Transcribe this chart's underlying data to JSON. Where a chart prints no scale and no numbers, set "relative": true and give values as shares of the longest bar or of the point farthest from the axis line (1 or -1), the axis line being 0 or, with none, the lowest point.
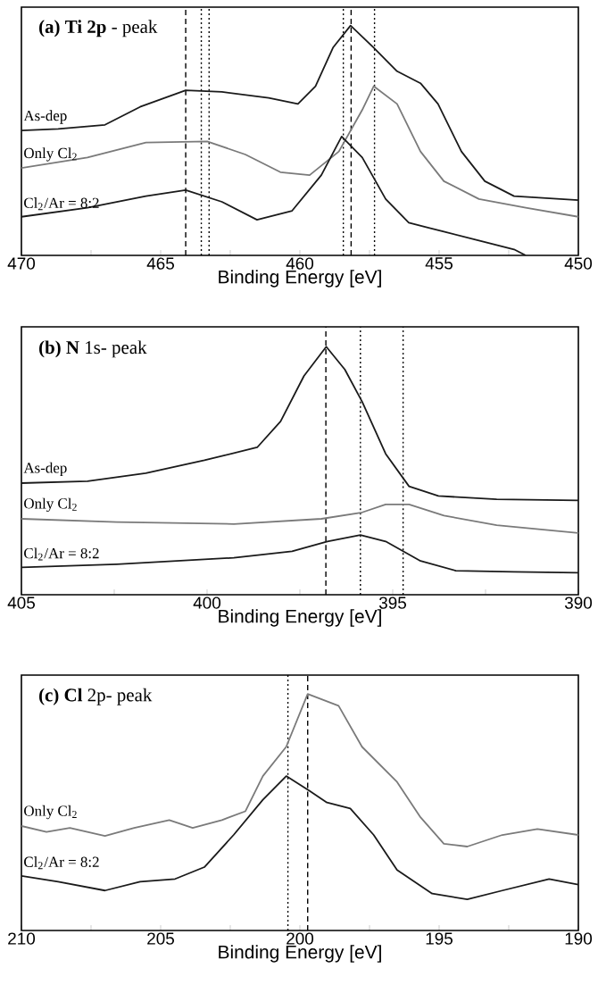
{
  "chart_data": [
    {
      "type": "line",
      "title": "**(a) Ti 2p** - peak",
      "xlabel": "Binding Energy [eV]",
      "relative": true,
      "tick_labels": "x",
      "xlim": [
        470,
        450
      ],
      "xticks": [
        470,
        {
          "value": 467.5,
          "label": null
        },
        465,
        {
          "value": 462.5,
          "label": null
        },
        460,
        {
          "value": 457.5,
          "label": null
        },
        455,
        {
          "value": 452.5,
          "label": null
        },
        450
      ],
      "ref_lines": [
        {
          "axis": "x",
          "value": 464.1,
          "line_style": "dashed",
          "color": "#000000"
        },
        {
          "axis": "x",
          "value": 463.54,
          "line_style": "dotted",
          "color": "#000000"
        },
        {
          "axis": "x",
          "value": 463.26,
          "line_style": "dotted",
          "color": "#000000"
        },
        {
          "axis": "x",
          "value": 458.44,
          "line_style": "dotted",
          "color": "#000000"
        },
        {
          "axis": "x",
          "value": 458.16,
          "line_style": "dashed",
          "color": "#000000"
        },
        {
          "axis": "x",
          "value": 457.32,
          "line_style": "dotted",
          "color": "#000000"
        }
      ],
      "series": [
        {
          "name": "As-dep",
          "color": "#1a1a1a",
          "x": [
            470,
            468.68,
            467.0,
            465.74,
            464.1,
            462.8,
            461.12,
            460.07,
            459.44,
            458.81,
            458.18,
            457.35,
            456.51,
            455.67,
            455.04,
            454.2,
            453.36,
            452.31,
            450
          ],
          "values": [
            0.543,
            0.55,
            0.568,
            0.646,
            0.718,
            0.711,
            0.685,
            0.659,
            0.736,
            0.904,
            1.0,
            0.904,
            0.801,
            0.749,
            0.659,
            0.452,
            0.323,
            0.258,
            0.24
          ]
        },
        {
          "name": "Only Cl$_{2}$",
          "color": "#7a7a7a",
          "x": [
            470,
            467.63,
            465.53,
            463.33,
            461.96,
            460.7,
            459.65,
            458.6,
            457.76,
            457.35,
            456.51,
            455.67,
            454.83,
            453.57,
            451.89,
            450
          ],
          "values": [
            0.38,
            0.426,
            0.491,
            0.496,
            0.439,
            0.362,
            0.349,
            0.452,
            0.633,
            0.736,
            0.659,
            0.452,
            0.323,
            0.245,
            0.207,
            0.168
          ]
        },
        {
          "name": "Cl$_{2}$/Ar = 8:2",
          "color": "#1a1a1a",
          "x": [
            470,
            467.63,
            465.53,
            464.1,
            462.8,
            461.54,
            460.28,
            459.23,
            458.5,
            457.76,
            456.92,
            456.09,
            454.83,
            453.57,
            452.31,
            451.89
          ],
          "values": [
            0.168,
            0.207,
            0.258,
            0.284,
            0.233,
            0.155,
            0.194,
            0.349,
            0.517,
            0.426,
            0.245,
            0.142,
            0.103,
            0.065,
            0.026,
            0.0
          ]
        }
      ]
    },
    {
      "type": "line",
      "title": "**(b) N** 1s- peak",
      "xlabel": "Binding Energy [eV]",
      "relative": true,
      "tick_labels": "x",
      "xlim": [
        405,
        390
      ],
      "xticks": [
        405,
        {
          "value": 402.5,
          "label": null
        },
        400,
        {
          "value": 397.5,
          "label": null
        },
        395,
        {
          "value": 392.5,
          "label": null
        },
        390
      ],
      "ref_lines": [
        {
          "axis": "x",
          "value": 396.8,
          "line_style": "dashed",
          "color": "#000000"
        },
        {
          "axis": "x",
          "value": 395.87,
          "line_style": "dotted",
          "color": "#000000"
        },
        {
          "axis": "x",
          "value": 394.72,
          "line_style": "dotted",
          "color": "#000000"
        }
      ],
      "series": [
        {
          "name": "As-dep",
          "color": "#1a1a1a",
          "x": [
            405,
            403.22,
            401.65,
            400.07,
            398.65,
            398.02,
            397.39,
            396.79,
            396.29,
            395.82,
            395.19,
            394.56,
            393.77,
            392.2,
            390
          ],
          "values": [
            0.45,
            0.458,
            0.49,
            0.542,
            0.594,
            0.699,
            0.882,
            1.0,
            0.908,
            0.777,
            0.568,
            0.437,
            0.398,
            0.385,
            0.38
          ]
        },
        {
          "name": "Only Cl$_{2}$",
          "color": "#7a7a7a",
          "x": [
            405,
            402.43,
            399.28,
            396.92,
            395.82,
            395.19,
            394.56,
            393.62,
            392.2,
            390
          ],
          "values": [
            0.306,
            0.293,
            0.285,
            0.306,
            0.332,
            0.364,
            0.364,
            0.319,
            0.28,
            0.249
          ]
        },
        {
          "name": "Cl$_{2}$/Ar = 8:2",
          "color": "#1a1a1a",
          "x": [
            405,
            402.43,
            399.28,
            397.71,
            396.76,
            395.87,
            395.19,
            394.25,
            393.3,
            391.73,
            390
          ],
          "values": [
            0.11,
            0.123,
            0.149,
            0.175,
            0.215,
            0.241,
            0.215,
            0.136,
            0.097,
            0.092,
            0.089
          ]
        }
      ]
    },
    {
      "type": "line",
      "title": "**(c) Cl** 2p- peak",
      "xlabel": "Binding Energy [eV]",
      "relative": true,
      "tick_labels": "x",
      "xlim": [
        210,
        190
      ],
      "xticks": [
        210,
        {
          "value": 207.5,
          "label": null
        },
        205,
        {
          "value": 202.5,
          "label": null
        },
        200,
        {
          "value": 197.5,
          "label": null
        },
        195,
        {
          "value": 192.5,
          "label": null
        },
        190
      ],
      "ref_lines": [
        {
          "axis": "x",
          "value": 200.43,
          "line_style": "dotted",
          "color": "#000000"
        },
        {
          "axis": "x",
          "value": 199.72,
          "line_style": "dashed",
          "color": "#000000"
        }
      ],
      "series": [
        {
          "name": "Only Cl$_{2}$",
          "color": "#7a7a7a",
          "x": [
            210,
            209.1,
            208.26,
            207.0,
            205.95,
            204.69,
            203.85,
            202.8,
            201.96,
            201.33,
            200.49,
            199.72,
            198.61,
            197.77,
            196.51,
            195.67,
            194.83,
            193.99,
            192.73,
            191.47,
            190
          ],
          "values": [
            0.442,
            0.417,
            0.434,
            0.4,
            0.434,
            0.467,
            0.434,
            0.467,
            0.504,
            0.653,
            0.777,
            1.0,
            0.95,
            0.777,
            0.628,
            0.479,
            0.367,
            0.355,
            0.404,
            0.429,
            0.404
          ]
        },
        {
          "name": "Cl$_{2}$/Ar = 8:2",
          "color": "#1a1a1a",
          "x": [
            210,
            208.68,
            207.0,
            205.74,
            204.48,
            203.43,
            202.38,
            201.33,
            200.49,
            199.66,
            199.03,
            198.19,
            197.35,
            196.51,
            195.25,
            193.99,
            192.73,
            191.05,
            190
          ],
          "values": [
            0.231,
            0.206,
            0.169,
            0.206,
            0.218,
            0.268,
            0.404,
            0.553,
            0.653,
            0.591,
            0.541,
            0.516,
            0.404,
            0.256,
            0.156,
            0.132,
            0.169,
            0.218,
            0.194
          ]
        }
      ]
    }
  ]
}
